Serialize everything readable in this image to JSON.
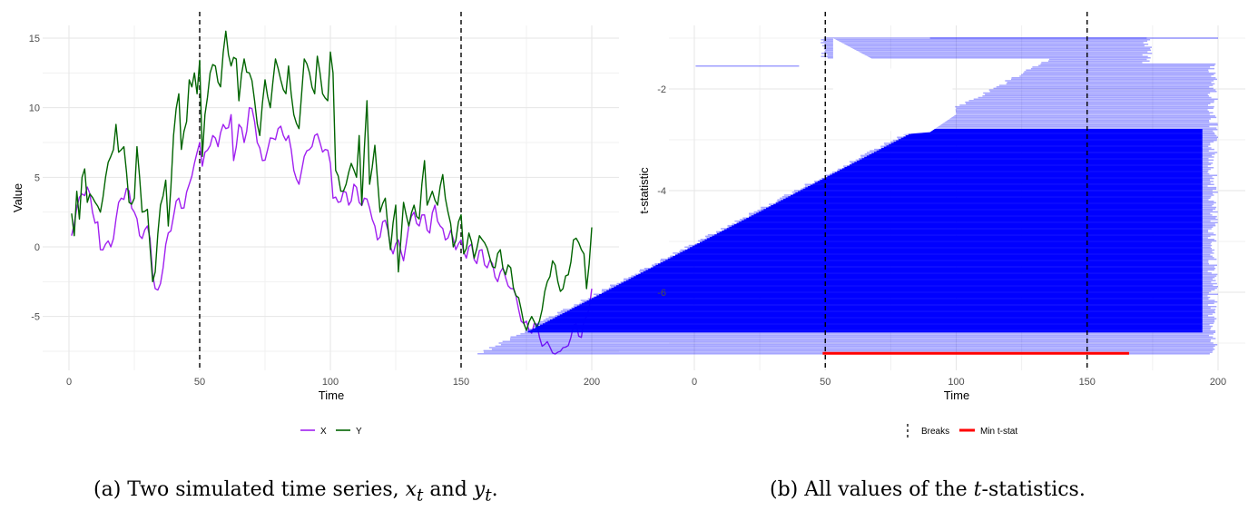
{
  "captions": {
    "a": {
      "label": "(a)",
      "text": "Two simulated time series,",
      "x_var": "x",
      "x_sub": "t",
      "and": "and",
      "y_var": "y",
      "y_sub": "t",
      "end": "."
    },
    "b": {
      "label": "(b)",
      "pre": "All values of the",
      "t_var": "t",
      "post": "-statistics."
    }
  },
  "chart_data": [
    {
      "type": "line",
      "xlabel": "Time",
      "ylabel": "Value",
      "xlim": [
        0,
        200
      ],
      "ylim": [
        -8,
        15
      ],
      "x_ticks": [
        0,
        50,
        100,
        150,
        200
      ],
      "y_ticks": [
        -5,
        0,
        5,
        10,
        15
      ],
      "grid": true,
      "legend_position": "bottom",
      "vlines": [
        50,
        150
      ],
      "series": [
        {
          "name": "X",
          "color": "#a020f0",
          "keypoints": [
            [
              1,
              0.8
            ],
            [
              3,
              2.8
            ],
            [
              5,
              3.8
            ],
            [
              7,
              4.3
            ],
            [
              9,
              2.5
            ],
            [
              11,
              1.8
            ],
            [
              12,
              -0.2
            ],
            [
              14,
              0.2
            ],
            [
              16,
              0
            ],
            [
              18,
              2
            ],
            [
              20,
              3.5
            ],
            [
              22,
              4.2
            ],
            [
              25,
              2.5
            ],
            [
              27,
              0.8
            ],
            [
              30,
              1.5
            ],
            [
              31,
              0.6
            ],
            [
              32,
              -2
            ],
            [
              33,
              -3
            ],
            [
              34,
              -3.1
            ],
            [
              36,
              -1.5
            ],
            [
              38,
              1
            ],
            [
              40,
              2.2
            ],
            [
              42,
              3.5
            ],
            [
              44,
              2.8
            ],
            [
              46,
              4.5
            ],
            [
              48,
              6
            ],
            [
              50,
              7.5
            ],
            [
              51,
              5.8
            ],
            [
              52,
              6.8
            ],
            [
              55,
              8
            ],
            [
              57,
              7.2
            ],
            [
              58,
              8.2
            ],
            [
              60,
              8.5
            ],
            [
              62,
              9.5
            ],
            [
              63,
              6.2
            ],
            [
              65,
              8.8
            ],
            [
              67,
              7.5
            ],
            [
              69,
              10
            ],
            [
              71,
              9
            ],
            [
              72,
              7.5
            ],
            [
              74,
              6.2
            ],
            [
              76,
              7
            ],
            [
              78,
              7.8
            ],
            [
              80,
              8.5
            ],
            [
              82,
              8
            ],
            [
              84,
              8
            ],
            [
              86,
              5.5
            ],
            [
              88,
              4.5
            ],
            [
              90,
              6.5
            ],
            [
              92,
              7
            ],
            [
              94,
              8
            ],
            [
              96,
              7.5
            ],
            [
              98,
              7
            ],
            [
              100,
              6
            ],
            [
              101,
              3.5
            ],
            [
              103,
              3.2
            ],
            [
              105,
              4
            ],
            [
              107,
              3
            ],
            [
              109,
              4.5
            ],
            [
              111,
              3.2
            ],
            [
              113,
              3.5
            ],
            [
              115,
              2.8
            ],
            [
              117,
              1.5
            ],
            [
              118,
              0.5
            ],
            [
              120,
              1.8
            ],
            [
              122,
              1.2
            ],
            [
              124,
              -0.5
            ],
            [
              126,
              0.5
            ],
            [
              128,
              -1
            ],
            [
              130,
              1.5
            ],
            [
              132,
              2.5
            ],
            [
              134,
              1.5
            ],
            [
              136,
              2.3
            ],
            [
              138,
              1
            ],
            [
              140,
              3
            ],
            [
              142,
              1.5
            ],
            [
              144,
              0.5
            ],
            [
              146,
              1.2
            ],
            [
              148,
              -0.2
            ],
            [
              150,
              0.5
            ],
            [
              152,
              -0.8
            ],
            [
              154,
              0.2
            ],
            [
              156,
              -1.2
            ],
            [
              158,
              -0.2
            ],
            [
              160,
              -1.5
            ],
            [
              162,
              -1.2
            ],
            [
              164,
              -2.5
            ],
            [
              166,
              -1.5
            ],
            [
              168,
              -2.8
            ],
            [
              170,
              -3
            ],
            [
              172,
              -4.5
            ],
            [
              174,
              -5.5
            ],
            [
              176,
              -6
            ],
            [
              178,
              -5.5
            ],
            [
              180,
              -6.5
            ],
            [
              182,
              -7
            ],
            [
              184,
              -7.2
            ],
            [
              186,
              -7.7
            ],
            [
              188,
              -7.5
            ],
            [
              190,
              -7.2
            ],
            [
              192,
              -6.5
            ],
            [
              194,
              -5.5
            ],
            [
              196,
              -6.5
            ],
            [
              198,
              -5
            ],
            [
              200,
              -3
            ]
          ]
        },
        {
          "name": "Y",
          "color": "#006400",
          "keypoints": [
            [
              1,
              2.4
            ],
            [
              2,
              0.8
            ],
            [
              3,
              4
            ],
            [
              4,
              2
            ],
            [
              5,
              5
            ],
            [
              6,
              5.6
            ],
            [
              7,
              3.2
            ],
            [
              8,
              3.8
            ],
            [
              10,
              3.2
            ],
            [
              12,
              2.5
            ],
            [
              14,
              5
            ],
            [
              16,
              6.5
            ],
            [
              17,
              7
            ],
            [
              18,
              8.8
            ],
            [
              19,
              6.8
            ],
            [
              21,
              7.2
            ],
            [
              23,
              3.2
            ],
            [
              25,
              3.5
            ],
            [
              26,
              7.2
            ],
            [
              28,
              2.5
            ],
            [
              30,
              2.7
            ],
            [
              31,
              0
            ],
            [
              32,
              -2.5
            ],
            [
              33,
              -1.8
            ],
            [
              35,
              3
            ],
            [
              37,
              4.8
            ],
            [
              38,
              1.5
            ],
            [
              40,
              8
            ],
            [
              42,
              11
            ],
            [
              43,
              7
            ],
            [
              45,
              9
            ],
            [
              46,
              12
            ],
            [
              47,
              11.5
            ],
            [
              48,
              12.5
            ],
            [
              49,
              11
            ],
            [
              50,
              13.4
            ],
            [
              51,
              6.5
            ],
            [
              52,
              9.5
            ],
            [
              54,
              12.5
            ],
            [
              56,
              13
            ],
            [
              58,
              11.5
            ],
            [
              60,
              15.5
            ],
            [
              62,
              13
            ],
            [
              64,
              13.5
            ],
            [
              65,
              10.5
            ],
            [
              67,
              13.5
            ],
            [
              69,
              12.5
            ],
            [
              71,
              10.5
            ],
            [
              73,
              8
            ],
            [
              75,
              12
            ],
            [
              77,
              10
            ],
            [
              79,
              13.5
            ],
            [
              81,
              12
            ],
            [
              83,
              11
            ],
            [
              84,
              13
            ],
            [
              85,
              11
            ],
            [
              86,
              9.5
            ],
            [
              88,
              8.5
            ],
            [
              90,
              13.5
            ],
            [
              92,
              12.5
            ],
            [
              94,
              11
            ],
            [
              95,
              13.7
            ],
            [
              97,
              11
            ],
            [
              99,
              10.5
            ],
            [
              100,
              14
            ],
            [
              101,
              12.5
            ],
            [
              102,
              5.5
            ],
            [
              104,
              4
            ],
            [
              106,
              4.5
            ],
            [
              108,
              6
            ],
            [
              110,
              5
            ],
            [
              111,
              8
            ],
            [
              112,
              3
            ],
            [
              114,
              10.5
            ],
            [
              115,
              4.5
            ],
            [
              117,
              7.3
            ],
            [
              119,
              2.5
            ],
            [
              121,
              3.5
            ],
            [
              123,
              -0.2
            ],
            [
              125,
              3
            ],
            [
              126,
              -1.8
            ],
            [
              128,
              3.2
            ],
            [
              130,
              1.5
            ],
            [
              132,
              3
            ],
            [
              134,
              2
            ],
            [
              136,
              6.2
            ],
            [
              137,
              3
            ],
            [
              139,
              4
            ],
            [
              141,
              3
            ],
            [
              143,
              5.2
            ],
            [
              145,
              2.5
            ],
            [
              147,
              0
            ],
            [
              149,
              1.8
            ],
            [
              150,
              2.3
            ],
            [
              151,
              -0.5
            ],
            [
              153,
              1
            ],
            [
              155,
              -0.8
            ],
            [
              157,
              0.8
            ],
            [
              159,
              0.3
            ],
            [
              161,
              -0.8
            ],
            [
              163,
              -1.5
            ],
            [
              165,
              -0.2
            ],
            [
              167,
              -2
            ],
            [
              169,
              -1.5
            ],
            [
              171,
              -3.5
            ],
            [
              173,
              -4.5
            ],
            [
              175,
              -6
            ],
            [
              177,
              -5
            ],
            [
              179,
              -5.8
            ],
            [
              181,
              -4.5
            ],
            [
              183,
              -2.5
            ],
            [
              185,
              -1
            ],
            [
              187,
              -2.5
            ],
            [
              189,
              -3
            ],
            [
              191,
              -2
            ],
            [
              193,
              0.5
            ],
            [
              195,
              0.3
            ],
            [
              197,
              -0.5
            ],
            [
              198,
              -3
            ],
            [
              200,
              1.4
            ]
          ]
        }
      ]
    },
    {
      "type": "scatter",
      "xlabel": "Time",
      "ylabel": "t-statistic",
      "xlim": [
        0,
        200
      ],
      "ylim": [
        -7.4,
        -0.9
      ],
      "x_ticks": [
        0,
        50,
        100,
        150,
        200
      ],
      "y_ticks": [
        -6,
        -4,
        -2
      ],
      "grid": true,
      "legend_position": "bottom",
      "vlines": [
        50,
        150
      ],
      "segments_color": "#0000ff",
      "min_tstat": {
        "value": -7.2,
        "x_start": 49,
        "x_end": 166,
        "color": "#ff0000"
      },
      "legend": [
        {
          "label": "Breaks",
          "style": "dashed-vertical"
        },
        {
          "label": "Min t-stat",
          "style": "red-line"
        }
      ]
    }
  ]
}
